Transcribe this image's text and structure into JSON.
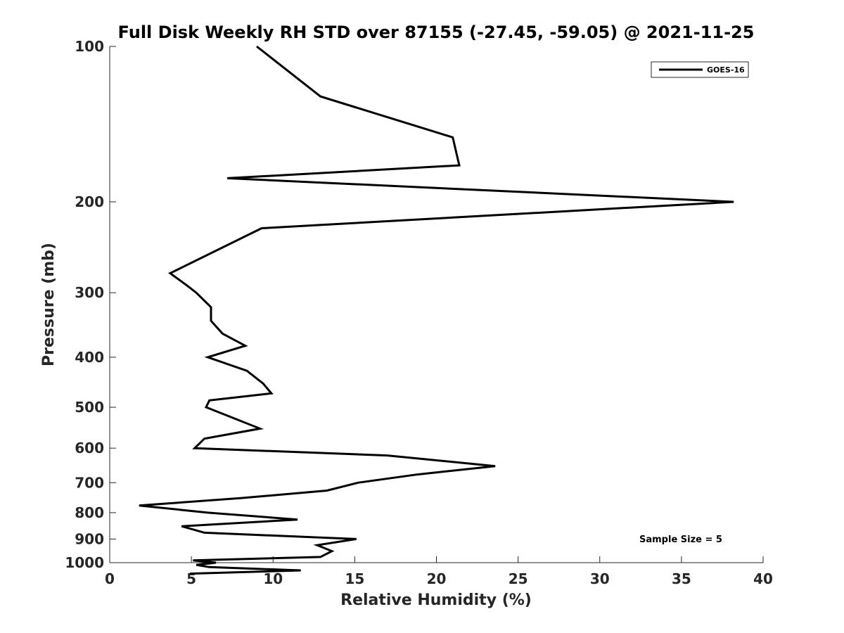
{
  "chart_data": {
    "type": "line",
    "title": "Full Disk Weekly RH STD over 87155 (-27.45, -59.05) @ 2021-11-25",
    "xlabel": "Relative Humidity (%)",
    "ylabel": "Pressure (mb)",
    "xlim": [
      0,
      40
    ],
    "ylim": [
      100,
      1000
    ],
    "yscale": "log",
    "yreverse": true,
    "xticks": [
      0,
      5,
      10,
      15,
      20,
      25,
      30,
      35,
      40
    ],
    "xtick_labels": [
      "0",
      "5",
      "10",
      "15",
      "20",
      "25",
      "30",
      "35",
      "40"
    ],
    "yticks": [
      100,
      200,
      300,
      400,
      500,
      600,
      700,
      800,
      900,
      1000
    ],
    "ytick_labels": [
      "100",
      "200",
      "300",
      "400",
      "500",
      "600",
      "700",
      "800",
      "900",
      "1000"
    ],
    "legend": {
      "position": "top-right",
      "entries": [
        "GOES-16"
      ]
    },
    "annotation": "Sample Size = 5",
    "grid": false,
    "series": [
      {
        "name": "GOES-16",
        "color": "#000000",
        "points": [
          [
            9.0,
            100
          ],
          [
            12.9,
            125
          ],
          [
            21.0,
            150
          ],
          [
            21.4,
            170
          ],
          [
            7.2,
            180
          ],
          [
            38.2,
            200
          ],
          [
            9.3,
            225
          ],
          [
            3.7,
            275
          ],
          [
            4.7,
            290
          ],
          [
            5.3,
            300
          ],
          [
            6.2,
            320
          ],
          [
            6.2,
            340
          ],
          [
            6.9,
            360
          ],
          [
            8.3,
            380
          ],
          [
            6.0,
            400
          ],
          [
            8.4,
            425
          ],
          [
            9.4,
            450
          ],
          [
            9.9,
            470
          ],
          [
            6.1,
            485
          ],
          [
            5.9,
            500
          ],
          [
            9.2,
            550
          ],
          [
            5.8,
            575
          ],
          [
            5.2,
            600
          ],
          [
            17.0,
            620
          ],
          [
            23.6,
            650
          ],
          [
            18.8,
            675
          ],
          [
            15.2,
            700
          ],
          [
            13.3,
            725
          ],
          [
            8.0,
            750
          ],
          [
            1.8,
            775
          ],
          [
            6.0,
            800
          ],
          [
            11.5,
            825
          ],
          [
            4.4,
            850
          ],
          [
            5.8,
            875
          ],
          [
            15.1,
            900
          ],
          [
            12.7,
            925
          ],
          [
            13.6,
            950
          ],
          [
            12.9,
            975
          ],
          [
            5.1,
            990
          ],
          [
            6.5,
            1000
          ],
          [
            5.3,
            1010
          ],
          [
            6.1,
            1020
          ],
          [
            11.7,
            1035
          ],
          [
            4.9,
            1050
          ]
        ]
      }
    ]
  }
}
